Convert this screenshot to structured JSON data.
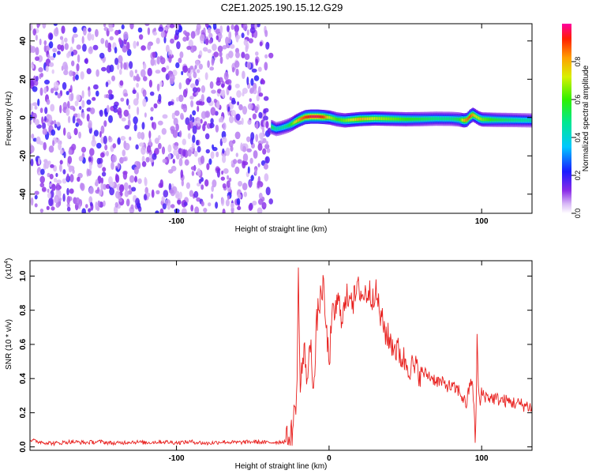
{
  "title": "C2E1.2025.190.15.12.G29",
  "chart_data": [
    {
      "type": "heatmap",
      "xlabel": "Height of straight line (km)",
      "ylabel": "Frequency (Hz)",
      "xlim": [
        -196,
        133
      ],
      "ylim": [
        -50,
        49
      ],
      "xticks": [
        -100,
        0,
        100
      ],
      "xtick_labels": [
        "-100",
        "",
        "100"
      ],
      "yticks": [
        -40,
        -20,
        0,
        20,
        40
      ],
      "noise_region": {
        "x_range": [
          -196,
          -38
        ],
        "y_range": [
          -50,
          49
        ],
        "typical_amplitude": 0.05
      },
      "ridge": {
        "x": [
          -38,
          -35,
          -32,
          -28,
          -25,
          -22,
          -19,
          -16,
          -12,
          -8,
          -4,
          0,
          5,
          10,
          20,
          30,
          40,
          50,
          60,
          70,
          80,
          85,
          88,
          90,
          92,
          94,
          96,
          98,
          100,
          110,
          120,
          133
        ],
        "frequency": [
          -5,
          -6,
          -5.5,
          -4.5,
          -3.5,
          -2,
          -0.8,
          0.2,
          0.5,
          0.5,
          0.3,
          0,
          -1,
          -1.5,
          -0.8,
          -0.5,
          -0.7,
          -0.9,
          -0.8,
          -0.6,
          -0.7,
          -1,
          -1.5,
          -1.2,
          0.5,
          1.5,
          0.5,
          -0.5,
          -1,
          -1.2,
          -1.3,
          -1.5
        ],
        "peak_amplitude": [
          0.55,
          0.45,
          0.45,
          0.5,
          0.6,
          0.75,
          0.85,
          0.9,
          0.95,
          0.95,
          0.9,
          0.7,
          0.6,
          0.65,
          0.8,
          0.7,
          0.65,
          0.6,
          0.55,
          0.5,
          0.5,
          0.55,
          0.8,
          0.85,
          0.9,
          0.8,
          0.7,
          0.7,
          0.65,
          0.55,
          0.5,
          0.45
        ]
      }
    },
    {
      "type": "line",
      "xlabel": "Height of straight line (km)",
      "ylabel": "SNR (10 * v/v)",
      "y_multiplier_label": "(x10",
      "y_multiplier_exp": "4",
      "xlim": [
        -196,
        133
      ],
      "ylim": [
        -0.02,
        1.09
      ],
      "xticks": [
        -100,
        0,
        100
      ],
      "xtick_labels": [
        "-100",
        "0",
        "100"
      ],
      "yticks": [
        0.0,
        0.2,
        0.4,
        0.6,
        0.8,
        1.0
      ],
      "ytick_labels": [
        "0.0",
        "0.2",
        "0.4",
        "0.6",
        "0.8",
        "1.0"
      ],
      "series": [
        {
          "color": "#e8201e",
          "x": [
            -196,
            -190,
            -180,
            -170,
            -160,
            -150,
            -140,
            -130,
            -120,
            -110,
            -100,
            -90,
            -80,
            -70,
            -60,
            -50,
            -40,
            -30,
            -26,
            -24,
            -22,
            -21,
            -20,
            -19,
            -18,
            -16,
            -14,
            -12,
            -10,
            -8,
            -6,
            -4,
            -2,
            0,
            2,
            4,
            6,
            8,
            10,
            12,
            14,
            16,
            18,
            20,
            22,
            24,
            26,
            28,
            30,
            32,
            34,
            36,
            38,
            40,
            42,
            44,
            46,
            48,
            50,
            55,
            60,
            65,
            70,
            75,
            80,
            85,
            88,
            90,
            92,
            94,
            95,
            96,
            97,
            98,
            99,
            100,
            102,
            105,
            110,
            115,
            120,
            125,
            130,
            133
          ],
          "y": [
            0.04,
            0.03,
            0.02,
            0.03,
            0.025,
            0.03,
            0.02,
            0.03,
            0.025,
            0.03,
            0.025,
            0.03,
            0.02,
            0.03,
            0.025,
            0.03,
            0.025,
            0.03,
            0.04,
            0.1,
            0.25,
            0.35,
            1.08,
            0.3,
            0.45,
            0.55,
            0.38,
            0.65,
            0.3,
            0.75,
            0.85,
            0.95,
            0.7,
            0.5,
            0.75,
            0.8,
            0.85,
            0.78,
            0.8,
            0.88,
            0.92,
            0.85,
            0.9,
            0.93,
            0.88,
            0.9,
            0.91,
            0.88,
            0.92,
            0.85,
            0.75,
            0.7,
            0.65,
            0.62,
            0.6,
            0.57,
            0.55,
            0.52,
            0.5,
            0.46,
            0.44,
            0.42,
            0.39,
            0.37,
            0.35,
            0.33,
            0.28,
            0.25,
            0.35,
            0.4,
            0.2,
            0.0,
            0.65,
            0.3,
            0.25,
            0.32,
            0.3,
            0.29,
            0.28,
            0.27,
            0.26,
            0.25,
            0.24,
            0.23
          ]
        }
      ]
    }
  ],
  "colorbar": {
    "label": "Normalized spectral amplitude",
    "range": [
      0,
      1
    ],
    "ticks": [
      0.0,
      0.2,
      0.4,
      0.6,
      0.8
    ],
    "tick_labels": [
      "0.0",
      "0.2",
      "0.4",
      "0.6",
      "0.8"
    ]
  }
}
